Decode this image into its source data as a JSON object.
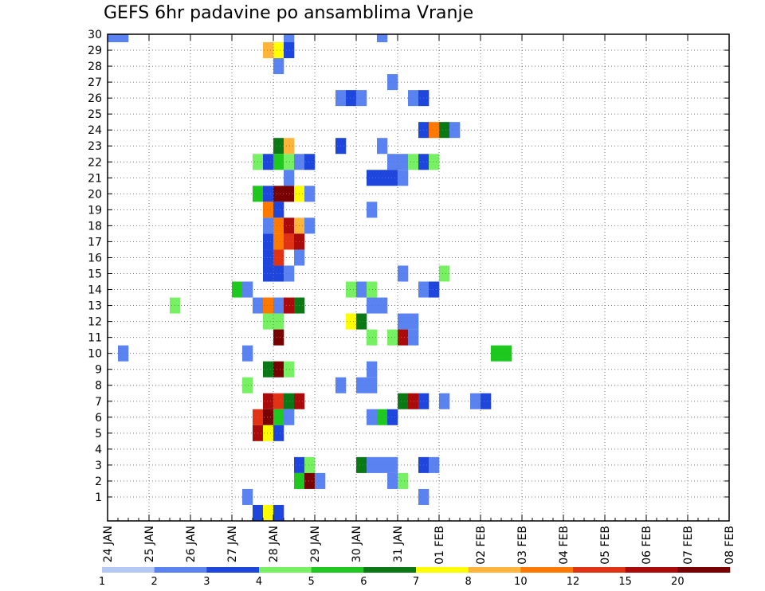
{
  "chart_data": {
    "type": "heatmap",
    "title": "GEFS 6hr padavine po ansamblima Vranje",
    "xlabel": "",
    "ylabel": "",
    "x_ticks": [
      "24 JAN",
      "25 JAN",
      "26 JAN",
      "27 JAN",
      "28 JAN",
      "29 JAN",
      "30 JAN",
      "31 JAN",
      "01 FEB",
      "02 FEB",
      "03 FEB",
      "04 FEB",
      "05 FEB",
      "06 FEB",
      "07 FEB",
      "08 FEB"
    ],
    "y_ticks": [
      1,
      2,
      3,
      4,
      5,
      6,
      7,
      8,
      9,
      10,
      11,
      12,
      13,
      14,
      15,
      16,
      17,
      18,
      19,
      20,
      21,
      22,
      23,
      24,
      25,
      26,
      27,
      28,
      29,
      30
    ],
    "steps_per_day": 4,
    "grid": true,
    "colorbar": {
      "labels": [
        "1",
        "2",
        "3",
        "4",
        "5",
        "6",
        "7",
        "8",
        "10",
        "12",
        "15",
        "20"
      ],
      "colors": [
        "#b4c8f5",
        "#5a82f0",
        "#1e46dc",
        "#78f064",
        "#1ec81e",
        "#0a7814",
        "#ffff00",
        "#ffb43c",
        "#ff7800",
        "#e13214",
        "#aa0a0a",
        "#780000"
      ]
    },
    "cells": [
      [
        0,
        30,
        1
      ],
      [
        1,
        30,
        1
      ],
      [
        17,
        30,
        1
      ],
      [
        26,
        30,
        1
      ],
      [
        15,
        29,
        7
      ],
      [
        16,
        29,
        6
      ],
      [
        17,
        29,
        2
      ],
      [
        16,
        28,
        1
      ],
      [
        27,
        27,
        1
      ],
      [
        22,
        26,
        1
      ],
      [
        23,
        26,
        2
      ],
      [
        24,
        26,
        1
      ],
      [
        29,
        26,
        1
      ],
      [
        30,
        26,
        2
      ],
      [
        30,
        24,
        2
      ],
      [
        31,
        24,
        8
      ],
      [
        32,
        24,
        5
      ],
      [
        33,
        24,
        1
      ],
      [
        16,
        23,
        5
      ],
      [
        17,
        23,
        7
      ],
      [
        22,
        23,
        2
      ],
      [
        26,
        23,
        1
      ],
      [
        14,
        22,
        3
      ],
      [
        15,
        22,
        2
      ],
      [
        16,
        22,
        4
      ],
      [
        17,
        22,
        3
      ],
      [
        18,
        22,
        1
      ],
      [
        19,
        22,
        2
      ],
      [
        27,
        22,
        1
      ],
      [
        28,
        22,
        1
      ],
      [
        29,
        22,
        3
      ],
      [
        30,
        22,
        2
      ],
      [
        31,
        22,
        3
      ],
      [
        17,
        21,
        1
      ],
      [
        25,
        21,
        2
      ],
      [
        26,
        21,
        2
      ],
      [
        27,
        21,
        2
      ],
      [
        28,
        21,
        1
      ],
      [
        14,
        20,
        4
      ],
      [
        15,
        20,
        2
      ],
      [
        16,
        20,
        11
      ],
      [
        17,
        20,
        11
      ],
      [
        18,
        20,
        6
      ],
      [
        19,
        20,
        1
      ],
      [
        15,
        19,
        8
      ],
      [
        16,
        19,
        2
      ],
      [
        25,
        19,
        1
      ],
      [
        15,
        18,
        1
      ],
      [
        16,
        18,
        8
      ],
      [
        17,
        18,
        10
      ],
      [
        18,
        18,
        7
      ],
      [
        19,
        18,
        1
      ],
      [
        15,
        17,
        2
      ],
      [
        16,
        17,
        8
      ],
      [
        17,
        17,
        9
      ],
      [
        18,
        17,
        10
      ],
      [
        15,
        16,
        2
      ],
      [
        16,
        16,
        9
      ],
      [
        18,
        16,
        1
      ],
      [
        15,
        15,
        2
      ],
      [
        16,
        15,
        2
      ],
      [
        17,
        15,
        1
      ],
      [
        28,
        15,
        1
      ],
      [
        32,
        15,
        3
      ],
      [
        12,
        14,
        4
      ],
      [
        13,
        14,
        1
      ],
      [
        23,
        14,
        3
      ],
      [
        24,
        14,
        1
      ],
      [
        25,
        14,
        3
      ],
      [
        30,
        14,
        1
      ],
      [
        31,
        14,
        2
      ],
      [
        6,
        13,
        3
      ],
      [
        14,
        13,
        1
      ],
      [
        15,
        13,
        8
      ],
      [
        16,
        13,
        1
      ],
      [
        17,
        13,
        10
      ],
      [
        18,
        13,
        5
      ],
      [
        25,
        13,
        1
      ],
      [
        26,
        13,
        1
      ],
      [
        15,
        12,
        3
      ],
      [
        16,
        12,
        3
      ],
      [
        23,
        12,
        6
      ],
      [
        24,
        12,
        5
      ],
      [
        28,
        12,
        1
      ],
      [
        29,
        12,
        1
      ],
      [
        16,
        11,
        11
      ],
      [
        25,
        11,
        3
      ],
      [
        27,
        11,
        3
      ],
      [
        28,
        11,
        10
      ],
      [
        29,
        11,
        1
      ],
      [
        1,
        10,
        1
      ],
      [
        13,
        10,
        1
      ],
      [
        37,
        10,
        4
      ],
      [
        38,
        10,
        4
      ],
      [
        15,
        9,
        5
      ],
      [
        16,
        9,
        11
      ],
      [
        17,
        9,
        3
      ],
      [
        25,
        9,
        1
      ],
      [
        13,
        8,
        3
      ],
      [
        22,
        8,
        1
      ],
      [
        24,
        8,
        1
      ],
      [
        25,
        8,
        1
      ],
      [
        15,
        7,
        10
      ],
      [
        16,
        7,
        9
      ],
      [
        17,
        7,
        5
      ],
      [
        18,
        7,
        10
      ],
      [
        28,
        7,
        5
      ],
      [
        29,
        7,
        10
      ],
      [
        30,
        7,
        2
      ],
      [
        32,
        7,
        1
      ],
      [
        35,
        7,
        1
      ],
      [
        36,
        7,
        2
      ],
      [
        14,
        6,
        9
      ],
      [
        15,
        6,
        11
      ],
      [
        16,
        6,
        4
      ],
      [
        17,
        6,
        1
      ],
      [
        25,
        6,
        1
      ],
      [
        26,
        6,
        4
      ],
      [
        27,
        6,
        2
      ],
      [
        14,
        5,
        10
      ],
      [
        15,
        5,
        6
      ],
      [
        16,
        5,
        2
      ],
      [
        18,
        3,
        2
      ],
      [
        19,
        3,
        3
      ],
      [
        24,
        3,
        5
      ],
      [
        25,
        3,
        1
      ],
      [
        26,
        3,
        1
      ],
      [
        27,
        3,
        1
      ],
      [
        30,
        3,
        2
      ],
      [
        31,
        3,
        1
      ],
      [
        18,
        2,
        4
      ],
      [
        19,
        2,
        11
      ],
      [
        20,
        2,
        1
      ],
      [
        27,
        2,
        1
      ],
      [
        28,
        2,
        3
      ],
      [
        13,
        1,
        1
      ],
      [
        30,
        1,
        1
      ],
      [
        14,
        0,
        2
      ],
      [
        15,
        0,
        6
      ],
      [
        16,
        0,
        2
      ]
    ]
  }
}
